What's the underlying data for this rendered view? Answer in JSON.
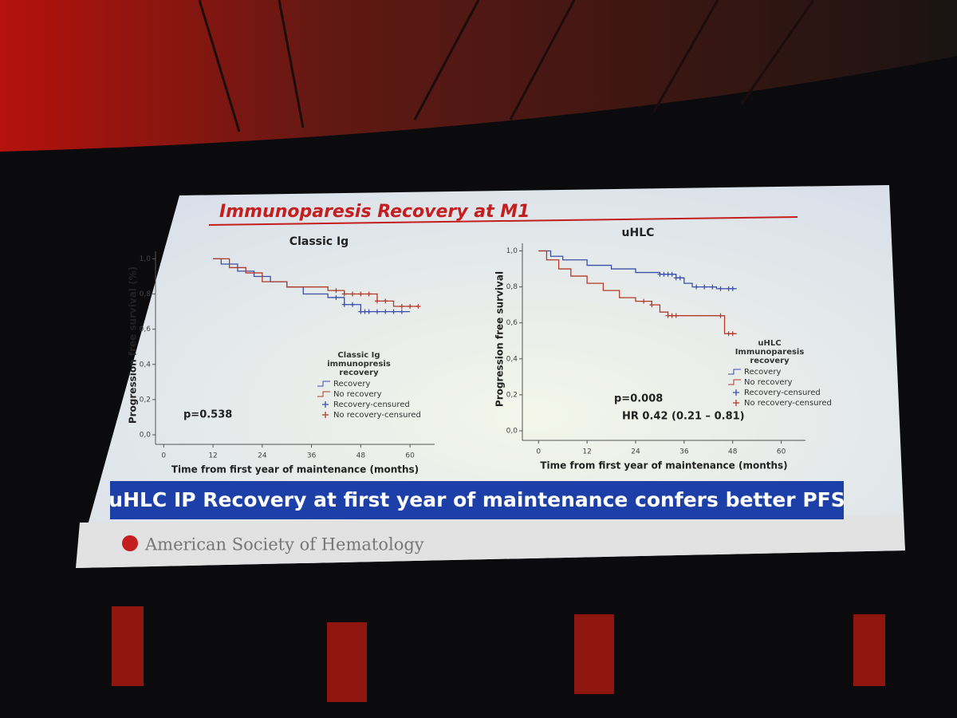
{
  "slide": {
    "title": "Immunoparesis Recovery at M1",
    "banner": "uHLC IP Recovery at first year of maintenance confers better PFS",
    "footer": "American Society of Hematology"
  },
  "chart_data": [
    {
      "type": "survival",
      "title": "Classic Ig",
      "x_label": "Time from first year of maintenance (months)",
      "y_label": "Progression free survival (%)",
      "legend_title": "Classic Ig immunopresis recovery",
      "annotations": [
        "p=0.538"
      ],
      "xlim": [
        -2,
        66
      ],
      "xticks": [
        0,
        12,
        24,
        36,
        48,
        60
      ],
      "ylim": [
        0,
        1.02
      ],
      "yticks": [
        {
          "value": 0,
          "label": "0,0"
        },
        {
          "value": 0.2,
          "label": "0,2"
        },
        {
          "value": 0.4,
          "label": "0,4"
        },
        {
          "value": 0.6,
          "label": "0,6"
        },
        {
          "value": 0.8,
          "label": "0,8"
        },
        {
          "value": 1,
          "label": "1,0"
        }
      ],
      "series": [
        {
          "name": "Recovery",
          "color": "#3a4fa8",
          "mark": "step",
          "x": [
            12,
            14,
            18,
            22,
            26,
            30,
            34,
            40,
            44,
            48,
            60
          ],
          "values": [
            1.0,
            0.97,
            0.93,
            0.9,
            0.87,
            0.84,
            0.8,
            0.78,
            0.74,
            0.7,
            0.7
          ]
        },
        {
          "name": "No recovery",
          "color": "#b23a2a",
          "mark": "step",
          "x": [
            12,
            16,
            20,
            24,
            30,
            40,
            44,
            52,
            56,
            62
          ],
          "values": [
            1.0,
            0.95,
            0.92,
            0.87,
            0.84,
            0.82,
            0.8,
            0.76,
            0.73,
            0.73
          ]
        },
        {
          "name": "Recovery-censured",
          "color": "#3a4fa8",
          "mark": "plus",
          "x": [
            42,
            44,
            46,
            48,
            49,
            50,
            52,
            54,
            56,
            58
          ],
          "values": [
            0.78,
            0.74,
            0.74,
            0.7,
            0.7,
            0.7,
            0.7,
            0.7,
            0.7,
            0.7
          ]
        },
        {
          "name": "No recovery-censured",
          "color": "#b23a2a",
          "mark": "plus",
          "x": [
            42,
            44,
            46,
            48,
            50,
            52,
            54,
            58,
            60,
            62
          ],
          "values": [
            0.82,
            0.8,
            0.8,
            0.8,
            0.8,
            0.76,
            0.76,
            0.73,
            0.73,
            0.73
          ]
        }
      ]
    },
    {
      "type": "survival",
      "title": "uHLC",
      "x_label": "Time from first year of maintenance (months)",
      "y_label": "Progression free survival",
      "legend_title": "uHLC Immunoparesis recovery",
      "annotations": [
        "p=0.008",
        "HR 0.42 (0.21 – 0.81)"
      ],
      "xlim": [
        -4,
        66
      ],
      "xticks": [
        0,
        12,
        24,
        36,
        48,
        60
      ],
      "ylim": [
        0,
        1.02
      ],
      "yticks": [
        {
          "value": 0,
          "label": "0,0"
        },
        {
          "value": 0.2,
          "label": "0,2"
        },
        {
          "value": 0.4,
          "label": "0,4"
        },
        {
          "value": 0.6,
          "label": "0,6"
        },
        {
          "value": 0.8,
          "label": "0,8"
        },
        {
          "value": 1,
          "label": "1,0"
        }
      ],
      "series": [
        {
          "name": "Recovery",
          "color": "#3a4fa8",
          "mark": "step",
          "x": [
            0,
            3,
            6,
            12,
            18,
            24,
            30,
            34,
            36,
            38,
            44,
            49
          ],
          "values": [
            1.0,
            0.97,
            0.95,
            0.92,
            0.9,
            0.88,
            0.87,
            0.85,
            0.82,
            0.8,
            0.79,
            0.79
          ]
        },
        {
          "name": "No recovery",
          "color": "#b23a2a",
          "mark": "step",
          "x": [
            0,
            2,
            5,
            8,
            12,
            16,
            20,
            24,
            28,
            30,
            32,
            44,
            46,
            49
          ],
          "values": [
            1.0,
            0.95,
            0.9,
            0.86,
            0.82,
            0.78,
            0.74,
            0.72,
            0.7,
            0.66,
            0.64,
            0.64,
            0.54,
            0.54
          ]
        },
        {
          "name": "Recovery-censured",
          "color": "#3a4fa8",
          "mark": "plus",
          "x": [
            30,
            31,
            32,
            33,
            34,
            35,
            39,
            41,
            43,
            45,
            47,
            48
          ],
          "values": [
            0.87,
            0.87,
            0.87,
            0.87,
            0.85,
            0.85,
            0.8,
            0.8,
            0.8,
            0.79,
            0.79,
            0.79
          ]
        },
        {
          "name": "No recovery-censured",
          "color": "#b23a2a",
          "mark": "plus",
          "x": [
            26,
            28,
            32,
            33,
            34,
            45,
            47,
            48
          ],
          "values": [
            0.72,
            0.7,
            0.64,
            0.64,
            0.64,
            0.64,
            0.54,
            0.54
          ]
        }
      ]
    }
  ]
}
